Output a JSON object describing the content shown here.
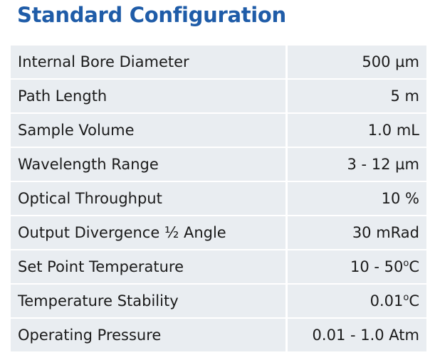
{
  "header": {
    "title": "Standard Configuration"
  },
  "table": {
    "rows": [
      [
        "Internal Bore Diameter",
        "500 µm"
      ],
      [
        "Path Length",
        "5 m"
      ],
      [
        "Sample Volume",
        "1.0 mL"
      ],
      [
        "Wavelength Range",
        "3 - 12 µm"
      ],
      [
        "Optical Throughput",
        "10 %"
      ],
      [
        "Output Divergence ½ Angle",
        "30 mRad"
      ],
      [
        "Set Point Temperature",
        {
          "text": "10 - 50",
          "sup": "o",
          "unit": "C"
        }
      ],
      [
        "Temperature Stability",
        {
          "text": "0.01",
          "sup": "o",
          "unit": "C"
        }
      ],
      [
        "Operating Pressure",
        "0.01 - 1.0 Atm"
      ]
    ]
  }
}
